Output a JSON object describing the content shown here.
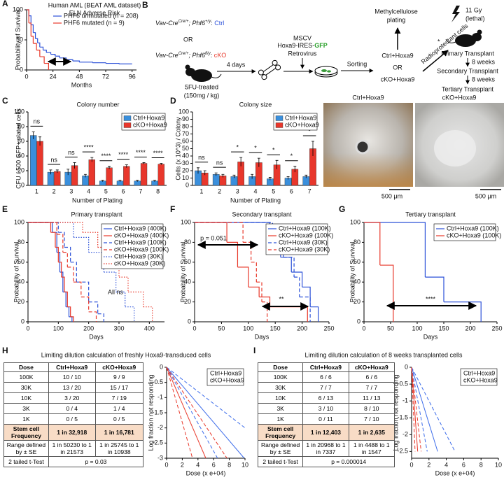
{
  "chart_data": [
    {
      "type": "step",
      "label": "A",
      "title": "Human AML (BEAT AML dataset)",
      "subtitle": "ELN Adverse Risk",
      "ylabel": "Probability of Survival",
      "xlabel": "Months",
      "xlim": [
        0,
        100
      ],
      "xticks": [
        0,
        24,
        48,
        72,
        96
      ],
      "ylim": [
        0,
        100
      ],
      "yticks": [
        0,
        50,
        100
      ],
      "legend": "upper right",
      "legend_frame": false,
      "series": [
        {
          "name": "PHF6 unmutated (n = 208)",
          "color": "#2b50d8",
          "dash": "solid",
          "x": [
            0,
            2,
            4,
            6,
            8,
            10,
            12,
            15,
            18,
            22,
            26,
            30,
            36,
            42,
            48,
            60,
            72,
            84,
            96
          ],
          "y": [
            100,
            90,
            75,
            62,
            52,
            45,
            38,
            33,
            29,
            26,
            23,
            20,
            17,
            15,
            13,
            12,
            11,
            10,
            10
          ]
        },
        {
          "name": "PHF6 mutated (n = 9)",
          "color": "#e8382a",
          "dash": "solid",
          "x": [
            0,
            2,
            4,
            6,
            9,
            12,
            16,
            20
          ],
          "y": [
            100,
            78,
            56,
            44,
            33,
            22,
            11,
            0
          ]
        }
      ]
    },
    {
      "type": "bar",
      "label": "C",
      "title": "Colony number",
      "ylabel": "CFU / 500 GFP+ plated cells",
      "xlabel": "Number of Plating",
      "categories": [
        "1",
        "2",
        "3",
        "4",
        "5",
        "6",
        "7",
        "8"
      ],
      "ylim": [
        0,
        100
      ],
      "yticks": [
        0,
        20,
        40,
        60,
        80,
        100
      ],
      "legend": "upper right",
      "legend_frame": true,
      "significance": [
        "ns",
        "ns",
        "ns",
        "****",
        "****",
        "****",
        "****",
        "****"
      ],
      "series": [
        {
          "name": "Ctrl+Hoxa9",
          "color": "#3a8fdc",
          "values": [
            68,
            18,
            18,
            13,
            6,
            6,
            6,
            6
          ],
          "errors": [
            5,
            3,
            4,
            2,
            1,
            1,
            1,
            1
          ]
        },
        {
          "name": "cKO+Hoxa9",
          "color": "#e8372c",
          "values": [
            60,
            19,
            27,
            35,
            24,
            26,
            30,
            29
          ],
          "errors": [
            6,
            2,
            4,
            3,
            2,
            2,
            1,
            1
          ]
        }
      ]
    },
    {
      "type": "bar",
      "label": "D",
      "title": "Colony size",
      "ylabel": "Cells (x 10^3) / Colony",
      "xlabel": "Number of Plating",
      "categories": [
        "1",
        "2",
        "3",
        "4",
        "5",
        "6",
        "7"
      ],
      "ylim": [
        0,
        100
      ],
      "yticks": [
        0,
        10,
        20,
        30,
        40,
        50,
        60,
        70,
        80,
        90,
        100
      ],
      "legend": "upper right",
      "legend_frame": true,
      "significance": [
        "ns",
        "ns",
        "*",
        "*",
        "*",
        "*",
        "*"
      ],
      "series": [
        {
          "name": "Ctrl+Hoxa9",
          "color": "#3a8fdc",
          "values": [
            20,
            15,
            12,
            12,
            9,
            10,
            12
          ],
          "errors": [
            4,
            2,
            2,
            3,
            2,
            2,
            2
          ]
        },
        {
          "name": "cKO+Hoxa9",
          "color": "#e8372c",
          "values": [
            17,
            13,
            32,
            31,
            28,
            22,
            50
          ],
          "errors": [
            3,
            2,
            6,
            6,
            6,
            4,
            10
          ]
        }
      ]
    },
    {
      "type": "step",
      "label": "E",
      "title": "Primary transplant",
      "ylabel": "Probability of Survival",
      "xlabel": "Days",
      "xlim": [
        0,
        450
      ],
      "xticks": [
        0,
        100,
        200,
        300,
        400
      ],
      "ylim": [
        0,
        100
      ],
      "yticks": [
        0,
        20,
        40,
        60,
        80,
        100
      ],
      "legend": "upper right",
      "legend_frame": true,
      "annotations": [
        "All ns"
      ],
      "series": [
        {
          "name": "Ctrl+Hoxa9 (400K)",
          "color": "#2b50d8",
          "dash": "solid",
          "x": [
            0,
            80,
            95,
            105,
            115,
            125,
            135,
            145
          ],
          "y": [
            100,
            90,
            70,
            50,
            30,
            15,
            5,
            0
          ]
        },
        {
          "name": "cKO+Hoxa9 (400K)",
          "color": "#e8382a",
          "dash": "solid",
          "x": [
            0,
            75,
            90,
            100,
            110,
            120,
            130,
            140,
            150
          ],
          "y": [
            100,
            90,
            75,
            60,
            45,
            30,
            15,
            5,
            0
          ]
        },
        {
          "name": "Ctrl+Hoxa9 (100K)",
          "color": "#2b50d8",
          "dash": "dashed",
          "x": [
            0,
            100,
            120,
            140,
            160,
            200,
            230,
            250
          ],
          "y": [
            100,
            90,
            75,
            60,
            40,
            20,
            8,
            0
          ]
        },
        {
          "name": "cKO+Hoxa9 (100K)",
          "color": "#e8382a",
          "dash": "dashed",
          "x": [
            0,
            95,
            115,
            130,
            150,
            175,
            200,
            225
          ],
          "y": [
            100,
            88,
            70,
            55,
            40,
            25,
            10,
            0
          ]
        },
        {
          "name": "Ctrl+Hoxa9 (30K)",
          "color": "#2b50d8",
          "dash": "dotted",
          "x": [
            0,
            150,
            200,
            250,
            290,
            320,
            350
          ],
          "y": [
            100,
            85,
            70,
            50,
            30,
            15,
            0
          ]
        },
        {
          "name": "cKO+Hoxa9 (30K)",
          "color": "#e8382a",
          "dash": "dotted",
          "x": [
            0,
            180,
            230,
            270,
            300,
            330,
            380,
            410
          ],
          "y": [
            100,
            90,
            75,
            60,
            45,
            30,
            15,
            0
          ]
        }
      ]
    },
    {
      "type": "step",
      "label": "F",
      "title": "Secondary transplant",
      "ylabel": "Probability of Survival",
      "xlabel": "Days",
      "xlim": [
        0,
        250
      ],
      "xticks": [
        0,
        50,
        100,
        150,
        200,
        250
      ],
      "ylim": [
        0,
        100
      ],
      "yticks": [
        0,
        20,
        40,
        60,
        80,
        100
      ],
      "legend": "upper right",
      "legend_frame": true,
      "annotations": [
        "p = 0.051",
        "**"
      ],
      "series": [
        {
          "name": "Ctrl+Hoxa9 (100K)",
          "color": "#2b50d8",
          "dash": "solid",
          "x": [
            0,
            140,
            160,
            180,
            200,
            215,
            230
          ],
          "y": [
            100,
            80,
            65,
            50,
            35,
            15,
            0
          ]
        },
        {
          "name": "cKO+Hoxa9 (100K)",
          "color": "#e8382a",
          "dash": "solid",
          "x": [
            0,
            60,
            80,
            100,
            120,
            140,
            210
          ],
          "y": [
            100,
            80,
            55,
            35,
            25,
            15,
            0
          ]
        },
        {
          "name": "Ctrl+Hoxa9 (30K)",
          "color": "#2b50d8",
          "dash": "dashed",
          "x": [
            0,
            145,
            165,
            185,
            195,
            215
          ],
          "y": [
            100,
            85,
            65,
            45,
            25,
            0
          ]
        },
        {
          "name": "cKO+Hoxa9 (30K)",
          "color": "#e8382a",
          "dash": "dashed",
          "x": [
            0,
            90,
            105,
            115,
            125,
            135
          ],
          "y": [
            100,
            80,
            60,
            40,
            20,
            0
          ]
        }
      ]
    },
    {
      "type": "step",
      "label": "G",
      "title": "Tertiary transplant",
      "ylabel": "Probability of Survival",
      "xlabel": "Days",
      "xlim": [
        0,
        250
      ],
      "xticks": [
        0,
        50,
        100,
        150,
        200,
        250
      ],
      "ylim": [
        0,
        100
      ],
      "yticks": [
        0,
        20,
        40,
        60,
        80,
        100
      ],
      "legend": "upper right",
      "legend_frame": true,
      "annotations": [
        "****"
      ],
      "series": [
        {
          "name": "Ctrl+Hoxa9 (100K)",
          "color": "#2b50d8",
          "dash": "solid",
          "x": [
            0,
            100,
            115,
            150,
            200,
            220
          ],
          "y": [
            100,
            100,
            45,
            20,
            20,
            0
          ]
        },
        {
          "name": "cKO+Hoxa9 (100K)",
          "color": "#e8382a",
          "dash": "solid",
          "x": [
            0,
            25,
            30,
            55
          ],
          "y": [
            100,
            100,
            57,
            0
          ]
        }
      ]
    },
    {
      "type": "line",
      "ylabel": "Log fraction not responding",
      "xlabel": "Dose (x e+04)",
      "xlim": [
        0,
        10
      ],
      "xticks": [
        0,
        2,
        4,
        6,
        8,
        10
      ],
      "ylim": [
        -3,
        0
      ],
      "yticks": [
        -3,
        -2.5,
        -2,
        -1.5,
        -1,
        -0.5,
        0
      ],
      "legend": "upper right",
      "legend_frame": true,
      "series": [
        {
          "name": "Ctrl+Hoxa9",
          "color": "#3b6bea",
          "dash": "solid",
          "x": [
            0,
            9.9
          ],
          "y": [
            0,
            -3
          ]
        },
        {
          "color": "#3b6bea",
          "dash": "dashed",
          "x": [
            0,
            10
          ],
          "y": [
            0,
            -2
          ]
        },
        {
          "color": "#3b6bea",
          "dash": "dashed",
          "x": [
            0,
            6.5
          ],
          "y": [
            0,
            -3
          ]
        },
        {
          "name": "cKO+Hoxa9",
          "color": "#e8382a",
          "dash": "solid",
          "x": [
            0,
            5
          ],
          "y": [
            0,
            -3
          ]
        },
        {
          "color": "#e8382a",
          "dash": "dashed",
          "x": [
            0,
            7.7
          ],
          "y": [
            0,
            -3
          ]
        },
        {
          "color": "#e8382a",
          "dash": "dashed",
          "x": [
            0,
            3.3
          ],
          "y": [
            0,
            -3
          ]
        }
      ]
    },
    {
      "type": "line",
      "ylabel": "Log fraction not responding",
      "xlabel": "Dose (x e+04)",
      "xlim": [
        0,
        10
      ],
      "xticks": [
        0,
        2,
        4,
        6,
        8,
        10
      ],
      "ylim": [
        -2.7,
        0
      ],
      "yticks": [
        -2.5,
        -2,
        -1.5,
        -1,
        -0.5,
        0
      ],
      "legend": "upper right",
      "legend_frame": true,
      "series": [
        {
          "name": "Ctrl+Hoxa9",
          "color": "#3b6bea",
          "dash": "solid",
          "x": [
            0,
            3
          ],
          "y": [
            0,
            -2.5
          ]
        },
        {
          "color": "#3b6bea",
          "dash": "dashed",
          "x": [
            0,
            5
          ],
          "y": [
            0,
            -2.5
          ]
        },
        {
          "color": "#3b6bea",
          "dash": "dashed",
          "x": [
            0,
            1.8
          ],
          "y": [
            0,
            -2.5
          ]
        },
        {
          "name": "cKO+Hoxa9",
          "color": "#e8382a",
          "dash": "solid",
          "x": [
            0,
            0.7
          ],
          "y": [
            0,
            -2.5
          ]
        },
        {
          "color": "#e8382a",
          "dash": "dashed",
          "x": [
            0,
            1.1
          ],
          "y": [
            0,
            -2.5
          ]
        },
        {
          "color": "#e8382a",
          "dash": "dashed",
          "x": [
            0,
            0.4
          ],
          "y": [
            0,
            -2.5
          ]
        }
      ]
    }
  ],
  "diagram": {
    "label": "B",
    "genotype_ctrl": {
      "gene1": "Vav-Cre",
      "sup1": "Cre/+",
      "gene2": "; Phf6",
      "sup2": "+/y",
      "sep": ": ",
      "group": "Ctrl"
    },
    "or1": "OR",
    "genotype_cko": {
      "gene1": "Vav-Cre",
      "sup1": "Cre/+",
      "gene2": "; Phf6",
      "sup2": "fl/y",
      "sep": ": ",
      "group": "cKO"
    },
    "treatment": "5FU-treated",
    "dose": "(150mg / kg)",
    "wait": "4 days",
    "vector1": "MSCV",
    "vector2": "Hoxa9-IRES-",
    "vector_gfp": "GFP",
    "vector3": "Retrovirus",
    "sorting": "Sorting",
    "group_ctrl": "Ctrl+Hoxa9",
    "or2": "OR",
    "group_cko": "cKO+Hoxa9",
    "methyl1": "Methylcellulose",
    "methyl2": "plating",
    "radio": "Radioprotectant cells",
    "star": "*",
    "irradiation": "11 Gy",
    "lethal": "(lethal)",
    "primary": "Primary Transplant",
    "wait1": "8 weeks",
    "secondary": "Secondary Transplant",
    "wait2": "8 weeks",
    "tertiary": "Tertiary Transplant"
  },
  "images": {
    "ctrl_label": "Ctrl+Hoxa9",
    "cko_label": "cKO+Hoxa9",
    "scale_bar": "500 μm"
  },
  "tables": [
    {
      "label": "H",
      "title": "Limiting dilution calculation of freshly Hoxa9-transduced cells",
      "header": [
        "Dose",
        "Ctrl+Hoxa9",
        "cKO+Hoxa9"
      ],
      "rows": [
        [
          "100K",
          "10 / 10",
          "9 / 9"
        ],
        [
          "30K",
          "13 / 20",
          "15 / 17"
        ],
        [
          "10K",
          "3 / 20",
          "7 / 19"
        ],
        [
          "3K",
          "0 / 4",
          "1 / 4"
        ],
        [
          "1K",
          "0 / 5",
          "0 / 5"
        ]
      ],
      "frequency": [
        "Stem cell Frequency",
        "1 in 32,918",
        "1 in 16,781"
      ],
      "range": [
        "Range defined by ± SE",
        "1 in 50230 to 1 in 21573",
        "1 in 25745 to 1 in 10938"
      ],
      "test": [
        "2 tailed t-Test",
        "p = 0.03"
      ]
    },
    {
      "label": "I",
      "title": "Limiting dilution calculation of 8 weeks transplanted cells",
      "header": [
        "Dose",
        "Ctrl+Hoxa9",
        "cKO+Hoxa9"
      ],
      "rows": [
        [
          "100K",
          "6 / 6",
          "6 / 6"
        ],
        [
          "30K",
          "7 / 7",
          "7 / 7"
        ],
        [
          "10K",
          "6 / 13",
          "11 / 13"
        ],
        [
          "3K",
          "3 / 10",
          "8 / 10"
        ],
        [
          "1K",
          "0 / 11",
          "7 / 10"
        ]
      ],
      "frequency": [
        "Stem cell Frequency",
        "1 in 12,403",
        "1 in 2,635"
      ],
      "range": [
        "Range defined by ± SE",
        "1 in 20968 to 1 in 7337",
        "1 in 4488 to 1 in 1547"
      ],
      "test": [
        "2 tailed t-Test",
        "p = 0.000014"
      ]
    }
  ]
}
